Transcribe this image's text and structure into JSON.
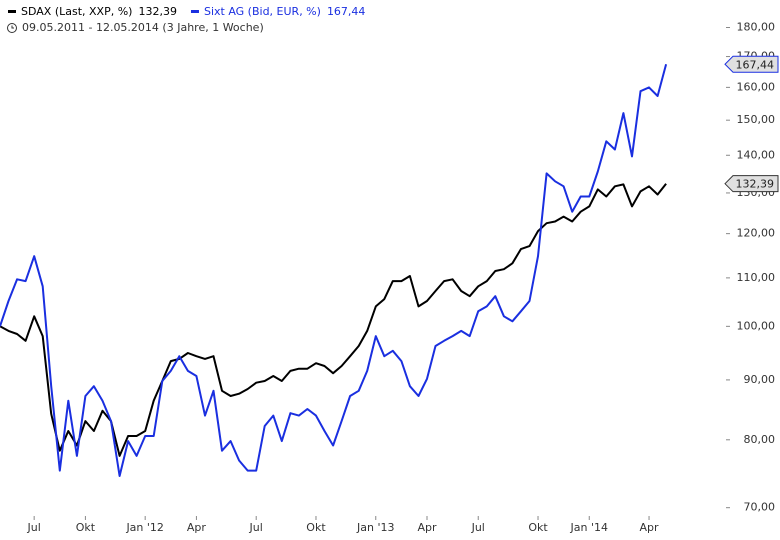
{
  "chart_data": {
    "type": "line",
    "subtitle": "09.05.2011 - 12.05.2014 (3 Jahre, 1 Woche)",
    "categories": [
      null,
      null,
      null,
      null,
      "Jul",
      null,
      null,
      null,
      null,
      null,
      "Okt",
      null,
      null,
      null,
      null,
      null,
      null,
      "Jan '12",
      null,
      null,
      null,
      null,
      null,
      "Apr",
      null,
      null,
      null,
      null,
      null,
      null,
      "Jul",
      null,
      null,
      null,
      null,
      null,
      null,
      "Okt",
      null,
      null,
      null,
      null,
      null,
      null,
      "Jan '13",
      null,
      null,
      null,
      null,
      null,
      "Apr",
      null,
      null,
      null,
      null,
      null,
      "Jul",
      null,
      null,
      null,
      null,
      null,
      null,
      "Okt",
      null,
      null,
      null,
      null,
      null,
      "Jan '14",
      null,
      null,
      null,
      null,
      null,
      null,
      "Apr",
      null,
      null
    ],
    "series": [
      {
        "name": "SDAX (Last, XXP, %)",
        "color": "#000000",
        "last_label": "132,39",
        "values": [
          100.0,
          99.1,
          98.5,
          97.2,
          102.0,
          98.1,
          84.2,
          78.3,
          81.4,
          79.1,
          83.0,
          81.4,
          84.7,
          83.0,
          77.5,
          80.6,
          80.6,
          81.4,
          86.4,
          89.8,
          93.4,
          93.8,
          94.9,
          94.3,
          93.8,
          94.3,
          88.1,
          87.2,
          87.6,
          88.4,
          89.5,
          89.8,
          90.7,
          89.8,
          91.6,
          92.0,
          92.0,
          93.0,
          92.5,
          91.2,
          92.5,
          94.3,
          96.2,
          99.1,
          104.0,
          105.5,
          109.3,
          109.3,
          110.4,
          104.0,
          105.1,
          107.2,
          109.3,
          109.7,
          107.2,
          106.1,
          108.2,
          109.3,
          111.5,
          111.9,
          113.2,
          116.4,
          117.1,
          120.6,
          122.5,
          122.9,
          124.1,
          122.9,
          125.3,
          126.6,
          130.9,
          129.1,
          131.7,
          132.2,
          126.6,
          130.4,
          131.7,
          129.6,
          132.39
        ]
      },
      {
        "name": "Sixt AG (Bid, EUR, %)",
        "color": "#1a2fe0",
        "last_label": "167,44",
        "values": [
          100.0,
          105.1,
          109.7,
          109.3,
          114.8,
          108.2,
          88.9,
          75.3,
          86.4,
          77.5,
          87.2,
          88.9,
          86.4,
          83.0,
          74.5,
          79.8,
          77.5,
          80.6,
          80.6,
          89.8,
          91.6,
          94.3,
          91.6,
          90.7,
          83.9,
          88.1,
          78.3,
          79.8,
          76.8,
          75.3,
          75.3,
          82.2,
          83.9,
          79.8,
          84.3,
          83.9,
          85.0,
          83.9,
          81.4,
          79.1,
          83.0,
          87.2,
          88.1,
          91.6,
          98.1,
          94.3,
          95.3,
          93.4,
          88.9,
          87.2,
          90.2,
          96.2,
          97.2,
          98.1,
          99.1,
          98.1,
          103.0,
          104.0,
          106.1,
          102.0,
          101.0,
          103.0,
          105.1,
          114.8,
          135.1,
          133.0,
          131.7,
          125.3,
          129.1,
          129.1,
          135.6,
          143.9,
          141.6,
          152.1,
          139.7,
          158.8,
          160.0,
          157.3,
          167.44
        ]
      }
    ],
    "ylim": [
      69,
      190
    ],
    "log_scale": true,
    "grid": false,
    "yticks": [
      {
        "value": 70,
        "label": "70,00"
      },
      {
        "value": 80,
        "label": "80,00"
      },
      {
        "value": 90,
        "label": "90,00"
      },
      {
        "value": 100,
        "label": "100,00"
      },
      {
        "value": 110,
        "label": "110,00"
      },
      {
        "value": 120,
        "label": "120,00"
      },
      {
        "value": 130,
        "label": "130,00"
      },
      {
        "value": 140,
        "label": "140,00"
      },
      {
        "value": 150,
        "label": "150,00"
      },
      {
        "value": 160,
        "label": "160,00"
      },
      {
        "value": 170,
        "label": "170,00"
      },
      {
        "value": 180,
        "label": "180,00"
      }
    ]
  }
}
